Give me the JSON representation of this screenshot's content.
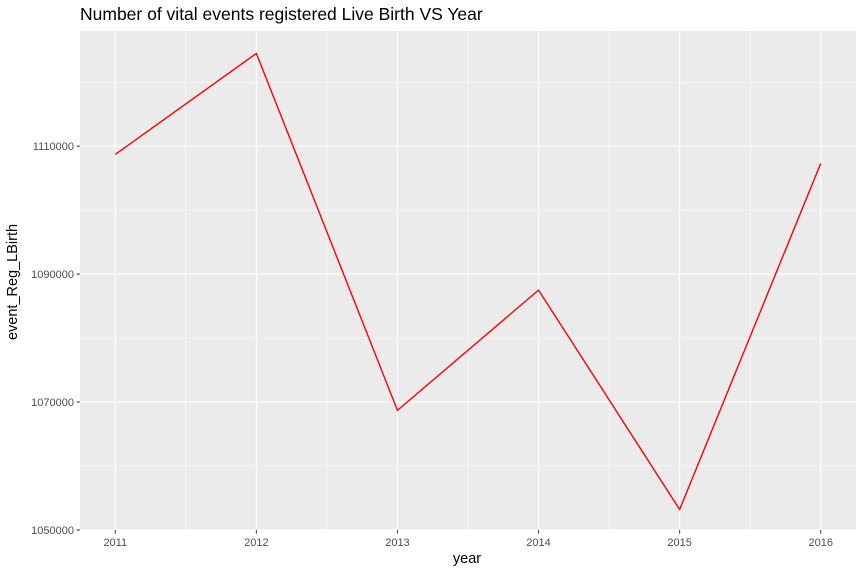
{
  "chart_data": {
    "type": "line",
    "title": "Number of vital events registered  Live Birth VS Year",
    "xlabel": "year",
    "ylabel": "event_Reg_LBirth",
    "x": [
      2011,
      2012,
      2013,
      2014,
      2015,
      2016
    ],
    "xticks": [
      "2011",
      "2012",
      "2013",
      "2014",
      "2015",
      "2016"
    ],
    "yticks": [
      "1050000",
      "1070000",
      "1090000",
      "1110000"
    ],
    "xlim": [
      2010.75,
      2016.25
    ],
    "ylim": [
      1050000,
      1128000
    ],
    "grid": true,
    "series": [
      {
        "color": "#ff0000",
        "values": [
          1108700,
          1124500,
          1068700,
          1087500,
          1053200,
          1107300
        ]
      }
    ]
  },
  "colors": {
    "panel_background": "#ebebeb",
    "grid": "#ffffff",
    "line": "#ff0000"
  }
}
